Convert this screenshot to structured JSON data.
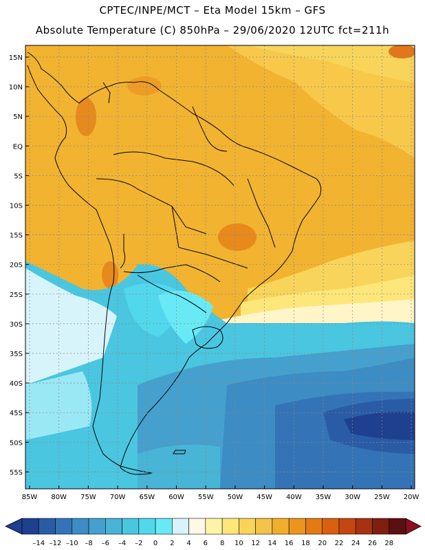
{
  "header": {
    "line1": "CPTEC/INPE/MCT –  Eta Model 15km – GFS",
    "line2": "Absolute Temperature (C) 850hPa – 29/06/2020 12UTC fct=211h"
  },
  "map": {
    "lat_labels": [
      "15N",
      "10N",
      "5N",
      "EQ",
      "5S",
      "10S",
      "15S",
      "20S",
      "25S",
      "30S",
      "35S",
      "40S",
      "45S",
      "50S",
      "55S"
    ],
    "lon_labels": [
      "85W",
      "80W",
      "75W",
      "70W",
      "65W",
      "60W",
      "55W",
      "50W",
      "45W",
      "40W",
      "35W",
      "30W",
      "25W",
      "20W"
    ]
  },
  "colorbar": {
    "labels": [
      "-14",
      "-12",
      "-10",
      "-8",
      "-6",
      "-4",
      "-2",
      "0",
      "2",
      "4",
      "6",
      "8",
      "10",
      "12",
      "14",
      "16",
      "18",
      "20",
      "22",
      "24",
      "26",
      "28"
    ],
    "colors": [
      "#1f3f8f",
      "#2a5ca6",
      "#3474b6",
      "#3d8cc4",
      "#45a0cd",
      "#48b4d6",
      "#4ac6e0",
      "#52d8ec",
      "#68eaf6",
      "#d8f4fb",
      "#fff8e6",
      "#fff5a8",
      "#fde77a",
      "#f8d55a",
      "#f3c34a",
      "#efae2c",
      "#eb951f",
      "#e47a16",
      "#d8600f",
      "#c44710",
      "#a63212",
      "#7e1f10",
      "#5a1010"
    ],
    "under_color": "#1f3f8f",
    "over_color": "#8a0f1f"
  }
}
